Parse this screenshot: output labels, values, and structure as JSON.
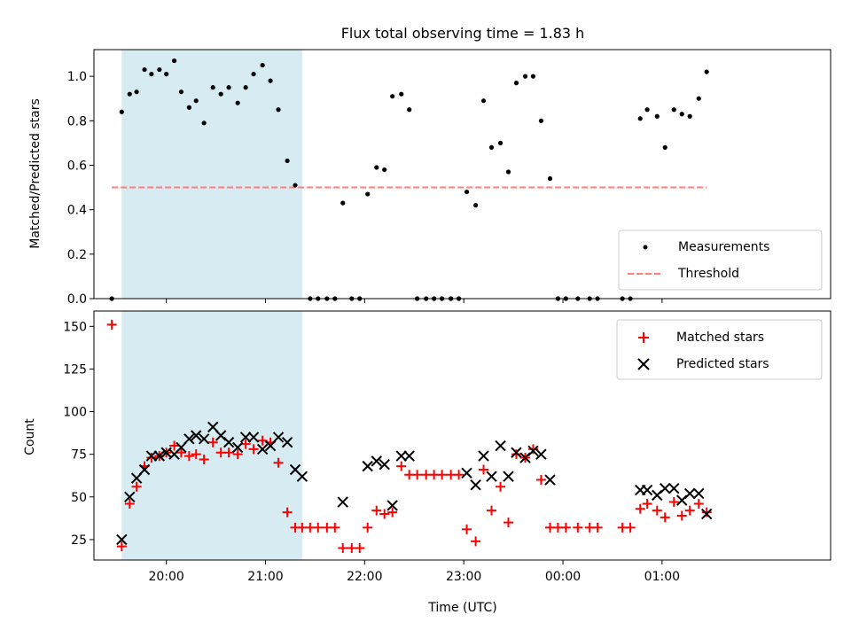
{
  "title": "Flux total observing time = 1.83 h",
  "colors": {
    "shade": "#add8e6",
    "measurement": "#000000",
    "threshold": "#ff7f7f",
    "matched": "#ff0000",
    "predicted": "#000000"
  },
  "chart_data": [
    {
      "type": "scatter",
      "ylabel": "Matched/Predicted stars",
      "xlabel": "",
      "ylim": [
        0,
        1.12
      ],
      "xlim": [
        19.27,
        26.7
      ],
      "yticks": [
        "0.0",
        "0.2",
        "0.4",
        "0.6",
        "0.8",
        "1.0"
      ],
      "ytick_values": [
        0,
        0.2,
        0.4,
        0.6,
        0.8,
        1.0
      ],
      "shaded_span": [
        19.55,
        21.37
      ],
      "threshold": {
        "y": 0.5,
        "x_range": [
          19.45,
          25.45
        ]
      },
      "legend": {
        "position": "lower-right",
        "entries": [
          "Measurements",
          "Threshold"
        ]
      },
      "series": [
        {
          "name": "Measurements",
          "points": [
            [
              19.45,
              0.0
            ],
            [
              19.55,
              0.84
            ],
            [
              19.63,
              0.92
            ],
            [
              19.7,
              0.93
            ],
            [
              19.78,
              1.03
            ],
            [
              19.85,
              1.01
            ],
            [
              19.93,
              1.03
            ],
            [
              20.0,
              1.01
            ],
            [
              20.08,
              1.07
            ],
            [
              20.15,
              0.93
            ],
            [
              20.23,
              0.86
            ],
            [
              20.3,
              0.89
            ],
            [
              20.38,
              0.79
            ],
            [
              20.47,
              0.95
            ],
            [
              20.55,
              0.92
            ],
            [
              20.63,
              0.95
            ],
            [
              20.72,
              0.88
            ],
            [
              20.8,
              0.95
            ],
            [
              20.88,
              1.01
            ],
            [
              20.97,
              1.05
            ],
            [
              21.05,
              0.98
            ],
            [
              21.13,
              0.85
            ],
            [
              21.22,
              0.62
            ],
            [
              21.3,
              0.51
            ],
            [
              21.45,
              0.0
            ],
            [
              21.53,
              0.0
            ],
            [
              21.62,
              0.0
            ],
            [
              21.7,
              0.0
            ],
            [
              21.78,
              0.43
            ],
            [
              21.87,
              0.0
            ],
            [
              21.95,
              0.0
            ],
            [
              22.03,
              0.47
            ],
            [
              22.12,
              0.59
            ],
            [
              22.2,
              0.58
            ],
            [
              22.28,
              0.91
            ],
            [
              22.37,
              0.92
            ],
            [
              22.45,
              0.85
            ],
            [
              22.53,
              0.0
            ],
            [
              22.62,
              0.0
            ],
            [
              22.7,
              0.0
            ],
            [
              22.78,
              0.0
            ],
            [
              22.87,
              0.0
            ],
            [
              22.95,
              0.0
            ],
            [
              23.03,
              0.48
            ],
            [
              23.12,
              0.42
            ],
            [
              23.2,
              0.89
            ],
            [
              23.28,
              0.68
            ],
            [
              23.37,
              0.7
            ],
            [
              23.45,
              0.57
            ],
            [
              23.53,
              0.97
            ],
            [
              23.62,
              1.0
            ],
            [
              23.7,
              1.0
            ],
            [
              23.78,
              0.8
            ],
            [
              23.87,
              0.54
            ],
            [
              23.95,
              0.0
            ],
            [
              24.03,
              0.0
            ],
            [
              24.15,
              0.0
            ],
            [
              24.27,
              0.0
            ],
            [
              24.35,
              0.0
            ],
            [
              24.6,
              0.0
            ],
            [
              24.68,
              0.0
            ],
            [
              24.78,
              0.81
            ],
            [
              24.85,
              0.85
            ],
            [
              24.95,
              0.82
            ],
            [
              25.03,
              0.68
            ],
            [
              25.12,
              0.85
            ],
            [
              25.2,
              0.83
            ],
            [
              25.28,
              0.82
            ],
            [
              25.37,
              0.9
            ],
            [
              25.45,
              1.02
            ]
          ]
        }
      ]
    },
    {
      "type": "scatter",
      "ylabel": "Count",
      "xlabel": "Time (UTC)",
      "ylim": [
        13,
        159
      ],
      "xlim": [
        19.27,
        26.7
      ],
      "yticks": [
        "25",
        "50",
        "75",
        "100",
        "125",
        "150"
      ],
      "ytick_values": [
        25,
        50,
        75,
        100,
        125,
        150
      ],
      "xticks": [
        "20:00",
        "21:00",
        "22:00",
        "23:00",
        "00:00",
        "01:00"
      ],
      "xtick_values": [
        20,
        21,
        22,
        23,
        24,
        25
      ],
      "shaded_span": [
        19.55,
        21.37
      ],
      "legend": {
        "position": "upper-right",
        "entries": [
          "Matched stars",
          "Predicted stars"
        ]
      },
      "series": [
        {
          "name": "Matched stars",
          "points": [
            [
              19.45,
              151
            ],
            [
              19.55,
              21
            ],
            [
              19.63,
              46
            ],
            [
              19.7,
              56
            ],
            [
              19.78,
              68
            ],
            [
              19.85,
              73
            ],
            [
              19.93,
              74
            ],
            [
              20.0,
              76
            ],
            [
              20.08,
              80
            ],
            [
              20.15,
              76
            ],
            [
              20.23,
              74
            ],
            [
              20.3,
              75
            ],
            [
              20.38,
              72
            ],
            [
              20.47,
              82
            ],
            [
              20.55,
              76
            ],
            [
              20.63,
              76
            ],
            [
              20.72,
              75
            ],
            [
              20.8,
              81
            ],
            [
              20.88,
              78
            ],
            [
              20.97,
              83
            ],
            [
              21.05,
              82
            ],
            [
              21.13,
              70
            ],
            [
              21.22,
              41
            ],
            [
              21.3,
              32
            ],
            [
              21.37,
              32
            ],
            [
              21.45,
              32
            ],
            [
              21.53,
              32
            ],
            [
              21.62,
              32
            ],
            [
              21.7,
              32
            ],
            [
              21.78,
              20
            ],
            [
              21.87,
              20
            ],
            [
              21.95,
              20
            ],
            [
              22.03,
              32
            ],
            [
              22.12,
              42
            ],
            [
              22.2,
              40
            ],
            [
              22.28,
              41
            ],
            [
              22.37,
              68
            ],
            [
              22.45,
              63
            ],
            [
              22.53,
              63
            ],
            [
              22.62,
              63
            ],
            [
              22.7,
              63
            ],
            [
              22.78,
              63
            ],
            [
              22.87,
              63
            ],
            [
              22.95,
              63
            ],
            [
              23.03,
              31
            ],
            [
              23.12,
              24
            ],
            [
              23.2,
              66
            ],
            [
              23.28,
              42
            ],
            [
              23.37,
              56
            ],
            [
              23.45,
              35
            ],
            [
              23.53,
              75
            ],
            [
              23.62,
              73
            ],
            [
              23.7,
              78
            ],
            [
              23.78,
              60
            ],
            [
              23.87,
              32
            ],
            [
              23.95,
              32
            ],
            [
              24.03,
              32
            ],
            [
              24.15,
              32
            ],
            [
              24.27,
              32
            ],
            [
              24.35,
              32
            ],
            [
              24.6,
              32
            ],
            [
              24.68,
              32
            ],
            [
              24.78,
              43
            ],
            [
              24.85,
              46
            ],
            [
              24.95,
              42
            ],
            [
              25.03,
              38
            ],
            [
              25.12,
              47
            ],
            [
              25.2,
              39
            ],
            [
              25.28,
              42
            ],
            [
              25.37,
              46
            ],
            [
              25.45,
              41
            ]
          ]
        },
        {
          "name": "Predicted stars",
          "points": [
            [
              19.55,
              25
            ],
            [
              19.63,
              50
            ],
            [
              19.7,
              61
            ],
            [
              19.78,
              66
            ],
            [
              19.85,
              74
            ],
            [
              19.93,
              74
            ],
            [
              20.0,
              76
            ],
            [
              20.08,
              75
            ],
            [
              20.15,
              79
            ],
            [
              20.23,
              84
            ],
            [
              20.3,
              86
            ],
            [
              20.38,
              84
            ],
            [
              20.47,
              91
            ],
            [
              20.55,
              86
            ],
            [
              20.63,
              82
            ],
            [
              20.72,
              79
            ],
            [
              20.8,
              85
            ],
            [
              20.88,
              85
            ],
            [
              20.97,
              78
            ],
            [
              21.05,
              80
            ],
            [
              21.13,
              85
            ],
            [
              21.22,
              82
            ],
            [
              21.3,
              66
            ],
            [
              21.37,
              62
            ],
            [
              21.78,
              47
            ],
            [
              22.03,
              68
            ],
            [
              22.12,
              71
            ],
            [
              22.2,
              69
            ],
            [
              22.28,
              45
            ],
            [
              22.37,
              74
            ],
            [
              22.45,
              74
            ],
            [
              23.03,
              64
            ],
            [
              23.12,
              57
            ],
            [
              23.2,
              74
            ],
            [
              23.28,
              62
            ],
            [
              23.37,
              80
            ],
            [
              23.45,
              62
            ],
            [
              23.53,
              76
            ],
            [
              23.62,
              73
            ],
            [
              23.7,
              77
            ],
            [
              23.78,
              75
            ],
            [
              23.87,
              60
            ],
            [
              24.78,
              54
            ],
            [
              24.85,
              54
            ],
            [
              24.95,
              51
            ],
            [
              25.03,
              55
            ],
            [
              25.12,
              55
            ],
            [
              25.2,
              48
            ],
            [
              25.28,
              52
            ],
            [
              25.37,
              52
            ],
            [
              25.45,
              40
            ]
          ]
        }
      ]
    }
  ]
}
